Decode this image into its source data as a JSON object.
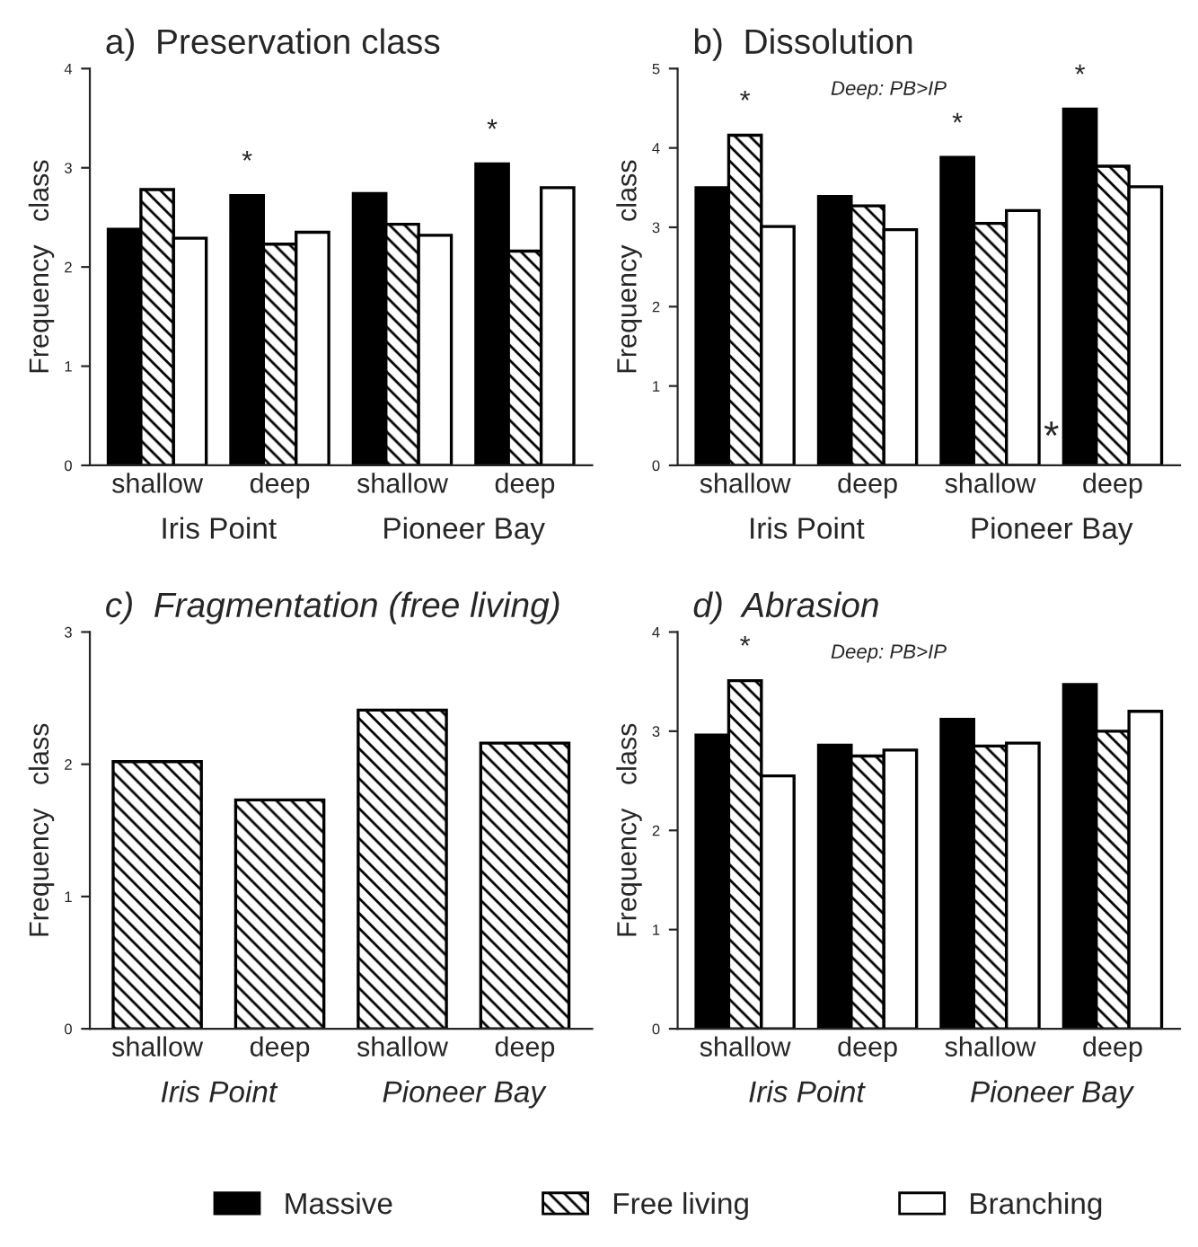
{
  "chart_data": [
    {
      "type": "bar",
      "title": "a)  Preservation class",
      "ylabel": "Frequency   class",
      "categories": [
        "shallow",
        "deep",
        "shallow",
        "deep"
      ],
      "ylim": [
        0,
        4
      ],
      "yticks": [
        0,
        1,
        2,
        3,
        4
      ],
      "annotations": [
        "Iris Point",
        "Pioneer Bay"
      ],
      "legend": "bottom",
      "series": [
        {
          "name": "Massive",
          "color": "#000000",
          "values": [
            2.38,
            2.72,
            2.74,
            3.04
          ],
          "value_labels": [
            null,
            "*",
            null,
            "*"
          ]
        },
        {
          "name": "Free living",
          "color": "#000000",
          "values": [
            2.78,
            2.23,
            2.43,
            2.16
          ]
        },
        {
          "name": "Branching",
          "color": "#ffffff",
          "values": [
            2.29,
            2.35,
            2.32,
            2.8
          ]
        }
      ]
    },
    {
      "type": "bar",
      "title": "b)  Dissolution",
      "ylabel": "Frequency   class",
      "categories": [
        "shallow",
        "deep",
        "shallow",
        "deep"
      ],
      "ylim": [
        0,
        5
      ],
      "yticks": [
        0,
        1,
        2,
        3,
        4,
        5
      ],
      "annotations": [
        "Iris Point",
        "Pioneer Bay",
        "Deep: PB>IP",
        "*"
      ],
      "series": [
        {
          "color": "#000000",
          "values": [
            3.5,
            3.39,
            3.88,
            4.49
          ],
          "value_labels": [
            null,
            null,
            "*",
            "*"
          ]
        },
        {
          "color": "#000000",
          "values": [
            4.16,
            3.27,
            3.05,
            3.77
          ],
          "value_labels": [
            "*",
            null,
            null,
            null
          ]
        },
        {
          "color": "#ffffff",
          "values": [
            3.01,
            2.97,
            3.21,
            3.51
          ]
        }
      ]
    },
    {
      "type": "bar",
      "title": "c)  Fragmentation (free living)",
      "ylabel": "Frequency   class",
      "categories": [
        "shallow",
        "deep",
        "shallow",
        "deep"
      ],
      "ylim": [
        0,
        3
      ],
      "yticks": [
        0,
        1,
        2,
        3
      ],
      "annotations": [
        "Iris Point",
        "Pioneer Bay"
      ],
      "series": [
        {
          "name": "Free living",
          "color": "#000000",
          "values": [
            2.02,
            1.73,
            2.41,
            2.16
          ]
        }
      ]
    },
    {
      "type": "bar",
      "title": "d)  Abrasion",
      "ylabel": "Frequency   class",
      "categories": [
        "shallow",
        "deep",
        "shallow",
        "deep"
      ],
      "ylim": [
        0,
        4
      ],
      "yticks": [
        0,
        1,
        2,
        3,
        4
      ],
      "annotations": [
        "Iris Point",
        "Pioneer Bay",
        "Deep: PB>IP"
      ],
      "series": [
        {
          "color": "#000000",
          "values": [
            2.96,
            2.86,
            3.12,
            3.47
          ]
        },
        {
          "color": "#000000",
          "values": [
            3.51,
            2.75,
            2.85,
            3.0
          ],
          "value_labels": [
            "*",
            null,
            null,
            null
          ]
        },
        {
          "color": "#ffffff",
          "values": [
            2.55,
            2.81,
            2.88,
            3.2
          ]
        }
      ]
    }
  ]
}
